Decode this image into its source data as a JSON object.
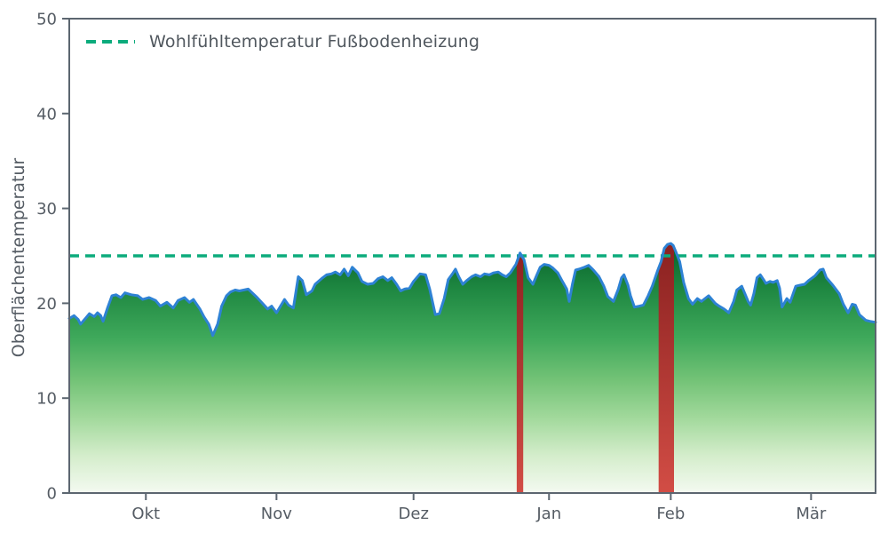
{
  "legend": {
    "label": "Wohlfühltemperatur Fußbodenheizung"
  },
  "colors": {
    "line": "#2e82d4",
    "comfort_line": "#0cab7c",
    "axis": "#5c6670",
    "tick_text": "#555c64",
    "legend_text": "#50575e",
    "area_gradient": [
      [
        "0%",
        "#06612a"
      ],
      [
        "18%",
        "#1e8741"
      ],
      [
        "38%",
        "#3fa95b"
      ],
      [
        "55%",
        "#74c377"
      ],
      [
        "70%",
        "#a2d99c"
      ],
      [
        "85%",
        "#d4edcb"
      ],
      [
        "100%",
        "#f4faf1"
      ]
    ],
    "bar_gradient": [
      [
        "0%",
        "#8a2120"
      ],
      [
        "100%",
        "#d24d45"
      ]
    ]
  },
  "chart_data": {
    "type": "area",
    "title": "",
    "ylabel": "Oberflächentemperatur",
    "xlabel": "",
    "y_unit": "°C",
    "ylim": [
      0,
      50
    ],
    "y_ticks": [
      0,
      10,
      20,
      30,
      40,
      50
    ],
    "x_ticks": [
      {
        "label": "Okt",
        "f": 0.095
      },
      {
        "label": "Nov",
        "f": 0.257
      },
      {
        "label": "Dez",
        "f": 0.427
      },
      {
        "label": "Jan",
        "f": 0.595
      },
      {
        "label": "Feb",
        "f": 0.746
      },
      {
        "label": "Mär",
        "f": 0.92
      }
    ],
    "x_unit": "Zeit von Mitte September bis Mitte März, x als Anteil 0–1 der Achse",
    "legend_label": "Wohlfühltemperatur Fußbodenheizung",
    "comfort_line_value": 25,
    "grid": false,
    "legend_position": "upper left",
    "exceed_spans": [
      [
        0.555,
        0.563
      ],
      [
        0.731,
        0.75
      ]
    ],
    "points": [
      [
        0,
        18.4
      ],
      [
        0.006,
        18.7
      ],
      [
        0.011,
        18.3
      ],
      [
        0.014,
        17.8
      ],
      [
        0.02,
        18.4
      ],
      [
        0.025,
        18.9
      ],
      [
        0.031,
        18.6
      ],
      [
        0.035,
        19
      ],
      [
        0.039,
        18.7
      ],
      [
        0.042,
        18.1
      ],
      [
        0.047,
        19.4
      ],
      [
        0.053,
        20.8
      ],
      [
        0.058,
        20.9
      ],
      [
        0.064,
        20.6
      ],
      [
        0.069,
        21.1
      ],
      [
        0.077,
        20.9
      ],
      [
        0.085,
        20.8
      ],
      [
        0.091,
        20.4
      ],
      [
        0.099,
        20.6
      ],
      [
        0.107,
        20.3
      ],
      [
        0.113,
        19.7
      ],
      [
        0.121,
        20.1
      ],
      [
        0.129,
        19.5
      ],
      [
        0.135,
        20.3
      ],
      [
        0.143,
        20.6
      ],
      [
        0.149,
        20.1
      ],
      [
        0.154,
        20.4
      ],
      [
        0.162,
        19.4
      ],
      [
        0.167,
        18.6
      ],
      [
        0.173,
        17.8
      ],
      [
        0.178,
        16.6
      ],
      [
        0.184,
        17.8
      ],
      [
        0.189,
        19.7
      ],
      [
        0.195,
        20.8
      ],
      [
        0.2,
        21.2
      ],
      [
        0.206,
        21.4
      ],
      [
        0.211,
        21.3
      ],
      [
        0.222,
        21.5
      ],
      [
        0.233,
        20.6
      ],
      [
        0.246,
        19.4
      ],
      [
        0.251,
        19.7
      ],
      [
        0.257,
        19
      ],
      [
        0.267,
        20.4
      ],
      [
        0.272,
        19.8
      ],
      [
        0.278,
        19.5
      ],
      [
        0.284,
        22.8
      ],
      [
        0.289,
        22.4
      ],
      [
        0.294,
        20.9
      ],
      [
        0.301,
        21.3
      ],
      [
        0.305,
        22
      ],
      [
        0.313,
        22.6
      ],
      [
        0.319,
        23
      ],
      [
        0.325,
        23.1
      ],
      [
        0.33,
        23.3
      ],
      [
        0.336,
        23
      ],
      [
        0.341,
        23.6
      ],
      [
        0.346,
        22.9
      ],
      [
        0.351,
        23.8
      ],
      [
        0.358,
        23.2
      ],
      [
        0.363,
        22.3
      ],
      [
        0.37,
        22
      ],
      [
        0.377,
        22.1
      ],
      [
        0.383,
        22.6
      ],
      [
        0.389,
        22.8
      ],
      [
        0.395,
        22.4
      ],
      [
        0.4,
        22.7
      ],
      [
        0.406,
        22
      ],
      [
        0.411,
        21.3
      ],
      [
        0.416,
        21.5
      ],
      [
        0.422,
        21.6
      ],
      [
        0.427,
        22.3
      ],
      [
        0.435,
        23.1
      ],
      [
        0.442,
        23
      ],
      [
        0.447,
        21.5
      ],
      [
        0.454,
        18.8
      ],
      [
        0.459,
        18.9
      ],
      [
        0.465,
        20.5
      ],
      [
        0.47,
        22.5
      ],
      [
        0.476,
        23.2
      ],
      [
        0.479,
        23.6
      ],
      [
        0.483,
        22.8
      ],
      [
        0.488,
        22
      ],
      [
        0.493,
        22.4
      ],
      [
        0.499,
        22.8
      ],
      [
        0.504,
        23
      ],
      [
        0.51,
        22.8
      ],
      [
        0.515,
        23.1
      ],
      [
        0.521,
        23
      ],
      [
        0.526,
        23.2
      ],
      [
        0.532,
        23.3
      ],
      [
        0.537,
        23
      ],
      [
        0.542,
        22.8
      ],
      [
        0.547,
        23.2
      ],
      [
        0.554,
        24.1
      ],
      [
        0.559,
        25.3
      ],
      [
        0.564,
        24.6
      ],
      [
        0.569,
        22.7
      ],
      [
        0.575,
        22
      ],
      [
        0.579,
        22.8
      ],
      [
        0.584,
        23.8
      ],
      [
        0.589,
        24.1
      ],
      [
        0.595,
        24
      ],
      [
        0.6,
        23.7
      ],
      [
        0.606,
        23.2
      ],
      [
        0.611,
        22.4
      ],
      [
        0.617,
        21.5
      ],
      [
        0.62,
        20.2
      ],
      [
        0.624,
        22
      ],
      [
        0.628,
        23.5
      ],
      [
        0.632,
        23.6
      ],
      [
        0.639,
        23.8
      ],
      [
        0.644,
        24
      ],
      [
        0.65,
        23.5
      ],
      [
        0.657,
        22.8
      ],
      [
        0.663,
        21.8
      ],
      [
        0.668,
        20.7
      ],
      [
        0.675,
        20.2
      ],
      [
        0.681,
        21.5
      ],
      [
        0.685,
        22.7
      ],
      [
        0.688,
        23
      ],
      [
        0.693,
        21.9
      ],
      [
        0.696,
        20.8
      ],
      [
        0.701,
        19.6
      ],
      [
        0.707,
        19.7
      ],
      [
        0.712,
        19.8
      ],
      [
        0.718,
        20.8
      ],
      [
        0.723,
        21.8
      ],
      [
        0.73,
        23.5
      ],
      [
        0.734,
        24.4
      ],
      [
        0.738,
        25.8
      ],
      [
        0.742,
        26.2
      ],
      [
        0.746,
        26.3
      ],
      [
        0.749,
        26.1
      ],
      [
        0.752,
        25.5
      ],
      [
        0.757,
        24.4
      ],
      [
        0.762,
        22.2
      ],
      [
        0.768,
        20.5
      ],
      [
        0.773,
        19.9
      ],
      [
        0.779,
        20.5
      ],
      [
        0.784,
        20.2
      ],
      [
        0.79,
        20.6
      ],
      [
        0.793,
        20.8
      ],
      [
        0.797,
        20.4
      ],
      [
        0.801,
        20
      ],
      [
        0.806,
        19.7
      ],
      [
        0.812,
        19.4
      ],
      [
        0.818,
        19
      ],
      [
        0.824,
        20.2
      ],
      [
        0.828,
        21.4
      ],
      [
        0.834,
        21.8
      ],
      [
        0.837,
        21.2
      ],
      [
        0.842,
        20.2
      ],
      [
        0.845,
        19.8
      ],
      [
        0.849,
        21
      ],
      [
        0.853,
        22.7
      ],
      [
        0.857,
        23
      ],
      [
        0.861,
        22.5
      ],
      [
        0.864,
        22.1
      ],
      [
        0.869,
        22.3
      ],
      [
        0.873,
        22.2
      ],
      [
        0.878,
        22.4
      ],
      [
        0.881,
        21.6
      ],
      [
        0.884,
        19.6
      ],
      [
        0.89,
        20.5
      ],
      [
        0.894,
        20.1
      ],
      [
        0.901,
        21.8
      ],
      [
        0.906,
        21.9
      ],
      [
        0.912,
        22
      ],
      [
        0.917,
        22.4
      ],
      [
        0.925,
        22.9
      ],
      [
        0.931,
        23.5
      ],
      [
        0.935,
        23.6
      ],
      [
        0.939,
        22.7
      ],
      [
        0.947,
        21.9
      ],
      [
        0.955,
        21
      ],
      [
        0.96,
        19.9
      ],
      [
        0.966,
        19
      ],
      [
        0.971,
        19.9
      ],
      [
        0.975,
        19.8
      ],
      [
        0.98,
        18.8
      ],
      [
        0.988,
        18.2
      ],
      [
        0.993,
        18.1
      ],
      [
        1,
        18
      ]
    ]
  }
}
